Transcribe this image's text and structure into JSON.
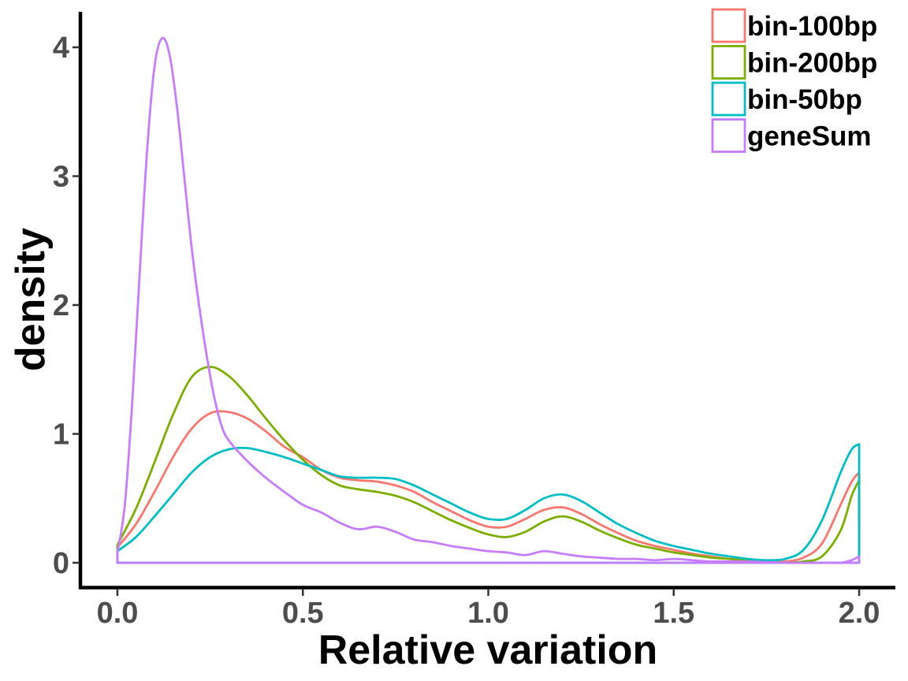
{
  "chart_data": {
    "type": "line",
    "title": "",
    "xlabel": "Relative variation",
    "ylabel": "density",
    "xlim": [
      -0.1,
      2.1
    ],
    "ylim": [
      -0.2,
      4.35
    ],
    "x_ticks": [
      {
        "value": 0.0,
        "label": "0.0"
      },
      {
        "value": 0.5,
        "label": "0.5"
      },
      {
        "value": 1.0,
        "label": "1.0"
      },
      {
        "value": 1.5,
        "label": "1.5"
      },
      {
        "value": 2.0,
        "label": "2.0"
      }
    ],
    "y_ticks": [
      {
        "value": 0,
        "label": "0"
      },
      {
        "value": 1,
        "label": "1"
      },
      {
        "value": 2,
        "label": "2"
      },
      {
        "value": 3,
        "label": "3"
      },
      {
        "value": 4,
        "label": "4"
      }
    ],
    "grid": false,
    "legend_position": "top-right",
    "series": [
      {
        "name": "bin-100bp",
        "color": "#F8766D",
        "points": [
          [
            0.0,
            0.12
          ],
          [
            0.05,
            0.3
          ],
          [
            0.1,
            0.55
          ],
          [
            0.15,
            0.82
          ],
          [
            0.2,
            1.04
          ],
          [
            0.25,
            1.16
          ],
          [
            0.3,
            1.17
          ],
          [
            0.35,
            1.12
          ],
          [
            0.4,
            1.02
          ],
          [
            0.45,
            0.9
          ],
          [
            0.5,
            0.82
          ],
          [
            0.55,
            0.72
          ],
          [
            0.6,
            0.66
          ],
          [
            0.65,
            0.64
          ],
          [
            0.7,
            0.63
          ],
          [
            0.75,
            0.6
          ],
          [
            0.8,
            0.55
          ],
          [
            0.85,
            0.47
          ],
          [
            0.9,
            0.4
          ],
          [
            0.95,
            0.33
          ],
          [
            1.0,
            0.28
          ],
          [
            1.05,
            0.28
          ],
          [
            1.1,
            0.34
          ],
          [
            1.15,
            0.41
          ],
          [
            1.2,
            0.43
          ],
          [
            1.25,
            0.38
          ],
          [
            1.3,
            0.3
          ],
          [
            1.35,
            0.23
          ],
          [
            1.4,
            0.17
          ],
          [
            1.45,
            0.13
          ],
          [
            1.5,
            0.1
          ],
          [
            1.55,
            0.07
          ],
          [
            1.6,
            0.05
          ],
          [
            1.65,
            0.03
          ],
          [
            1.7,
            0.02
          ],
          [
            1.75,
            0.01
          ],
          [
            1.8,
            0.01
          ],
          [
            1.85,
            0.04
          ],
          [
            1.9,
            0.15
          ],
          [
            1.95,
            0.45
          ],
          [
            1.98,
            0.63
          ],
          [
            2.0,
            0.7
          ],
          [
            2.0,
            0.0
          ]
        ]
      },
      {
        "name": "bin-200bp",
        "color": "#7CAE00",
        "points": [
          [
            0.0,
            0.14
          ],
          [
            0.05,
            0.42
          ],
          [
            0.1,
            0.78
          ],
          [
            0.15,
            1.15
          ],
          [
            0.2,
            1.44
          ],
          [
            0.25,
            1.52
          ],
          [
            0.3,
            1.45
          ],
          [
            0.35,
            1.3
          ],
          [
            0.4,
            1.12
          ],
          [
            0.45,
            0.95
          ],
          [
            0.5,
            0.8
          ],
          [
            0.55,
            0.68
          ],
          [
            0.6,
            0.6
          ],
          [
            0.65,
            0.57
          ],
          [
            0.7,
            0.55
          ],
          [
            0.75,
            0.52
          ],
          [
            0.8,
            0.47
          ],
          [
            0.85,
            0.4
          ],
          [
            0.9,
            0.33
          ],
          [
            0.95,
            0.27
          ],
          [
            1.0,
            0.22
          ],
          [
            1.05,
            0.2
          ],
          [
            1.1,
            0.24
          ],
          [
            1.15,
            0.32
          ],
          [
            1.2,
            0.36
          ],
          [
            1.25,
            0.32
          ],
          [
            1.3,
            0.25
          ],
          [
            1.35,
            0.19
          ],
          [
            1.4,
            0.14
          ],
          [
            1.45,
            0.11
          ],
          [
            1.5,
            0.08
          ],
          [
            1.55,
            0.06
          ],
          [
            1.6,
            0.04
          ],
          [
            1.65,
            0.03
          ],
          [
            1.7,
            0.02
          ],
          [
            1.75,
            0.01
          ],
          [
            1.8,
            0.0
          ],
          [
            1.85,
            0.01
          ],
          [
            1.9,
            0.05
          ],
          [
            1.95,
            0.25
          ],
          [
            1.98,
            0.52
          ],
          [
            2.0,
            0.64
          ],
          [
            2.0,
            0.0
          ]
        ]
      },
      {
        "name": "bin-50bp",
        "color": "#00BFC4",
        "points": [
          [
            0.0,
            0.09
          ],
          [
            0.05,
            0.2
          ],
          [
            0.1,
            0.36
          ],
          [
            0.15,
            0.53
          ],
          [
            0.2,
            0.7
          ],
          [
            0.25,
            0.82
          ],
          [
            0.3,
            0.88
          ],
          [
            0.35,
            0.89
          ],
          [
            0.4,
            0.86
          ],
          [
            0.45,
            0.82
          ],
          [
            0.5,
            0.77
          ],
          [
            0.55,
            0.72
          ],
          [
            0.6,
            0.67
          ],
          [
            0.65,
            0.66
          ],
          [
            0.7,
            0.66
          ],
          [
            0.75,
            0.65
          ],
          [
            0.8,
            0.6
          ],
          [
            0.85,
            0.53
          ],
          [
            0.9,
            0.46
          ],
          [
            0.95,
            0.39
          ],
          [
            1.0,
            0.34
          ],
          [
            1.05,
            0.34
          ],
          [
            1.1,
            0.41
          ],
          [
            1.15,
            0.5
          ],
          [
            1.2,
            0.53
          ],
          [
            1.25,
            0.48
          ],
          [
            1.3,
            0.39
          ],
          [
            1.35,
            0.3
          ],
          [
            1.4,
            0.23
          ],
          [
            1.45,
            0.17
          ],
          [
            1.5,
            0.13
          ],
          [
            1.55,
            0.1
          ],
          [
            1.6,
            0.07
          ],
          [
            1.65,
            0.05
          ],
          [
            1.7,
            0.03
          ],
          [
            1.75,
            0.02
          ],
          [
            1.8,
            0.03
          ],
          [
            1.85,
            0.1
          ],
          [
            1.9,
            0.33
          ],
          [
            1.95,
            0.7
          ],
          [
            1.98,
            0.88
          ],
          [
            2.0,
            0.92
          ],
          [
            2.0,
            0.0
          ]
        ]
      },
      {
        "name": "geneSum",
        "color": "#C77CFF",
        "points": [
          [
            0.0,
            0.08
          ],
          [
            0.02,
            0.45
          ],
          [
            0.04,
            1.25
          ],
          [
            0.06,
            2.25
          ],
          [
            0.08,
            3.2
          ],
          [
            0.1,
            3.85
          ],
          [
            0.12,
            4.07
          ],
          [
            0.14,
            3.95
          ],
          [
            0.16,
            3.55
          ],
          [
            0.18,
            3.0
          ],
          [
            0.2,
            2.45
          ],
          [
            0.22,
            2.0
          ],
          [
            0.24,
            1.62
          ],
          [
            0.26,
            1.3
          ],
          [
            0.28,
            1.07
          ],
          [
            0.3,
            0.95
          ],
          [
            0.35,
            0.79
          ],
          [
            0.4,
            0.66
          ],
          [
            0.45,
            0.55
          ],
          [
            0.5,
            0.45
          ],
          [
            0.55,
            0.39
          ],
          [
            0.6,
            0.31
          ],
          [
            0.65,
            0.26
          ],
          [
            0.7,
            0.28
          ],
          [
            0.75,
            0.24
          ],
          [
            0.8,
            0.18
          ],
          [
            0.85,
            0.16
          ],
          [
            0.9,
            0.13
          ],
          [
            0.95,
            0.11
          ],
          [
            1.0,
            0.09
          ],
          [
            1.05,
            0.08
          ],
          [
            1.1,
            0.06
          ],
          [
            1.15,
            0.09
          ],
          [
            1.2,
            0.07
          ],
          [
            1.25,
            0.05
          ],
          [
            1.3,
            0.04
          ],
          [
            1.35,
            0.03
          ],
          [
            1.4,
            0.03
          ],
          [
            1.45,
            0.02
          ],
          [
            1.5,
            0.03
          ],
          [
            1.55,
            0.02
          ],
          [
            1.6,
            0.01
          ],
          [
            1.7,
            0.01
          ],
          [
            1.8,
            0.0
          ],
          [
            1.9,
            0.0
          ],
          [
            1.95,
            0.0
          ],
          [
            1.98,
            0.02
          ],
          [
            2.0,
            0.05
          ],
          [
            2.0,
            0.0
          ]
        ]
      }
    ]
  }
}
